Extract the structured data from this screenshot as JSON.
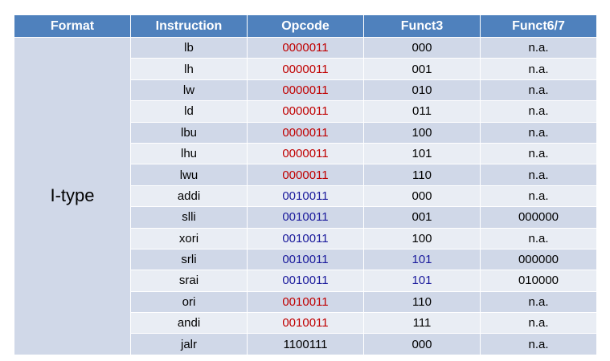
{
  "table": {
    "header": [
      "Format",
      "Instruction",
      "Opcode",
      "Funct3",
      "Funct6/7"
    ],
    "format": "I-type",
    "rows": [
      {
        "cells": [
          "lb",
          "0000011",
          "000",
          "n.a."
        ],
        "colors": [
          "#000000",
          "#c00000",
          "#000000",
          "#000000"
        ]
      },
      {
        "cells": [
          "lh",
          "0000011",
          "001",
          "n.a."
        ],
        "colors": [
          "#000000",
          "#c00000",
          "#000000",
          "#000000"
        ]
      },
      {
        "cells": [
          "lw",
          "0000011",
          "010",
          "n.a."
        ],
        "colors": [
          "#000000",
          "#c00000",
          "#000000",
          "#000000"
        ]
      },
      {
        "cells": [
          "ld",
          "0000011",
          "011",
          "n.a."
        ],
        "colors": [
          "#000000",
          "#c00000",
          "#000000",
          "#000000"
        ]
      },
      {
        "cells": [
          "lbu",
          "0000011",
          "100",
          "n.a."
        ],
        "colors": [
          "#000000",
          "#c00000",
          "#000000",
          "#000000"
        ]
      },
      {
        "cells": [
          "lhu",
          "0000011",
          "101",
          "n.a."
        ],
        "colors": [
          "#000000",
          "#c00000",
          "#000000",
          "#000000"
        ]
      },
      {
        "cells": [
          "lwu",
          "0000011",
          "110",
          "n.a."
        ],
        "colors": [
          "#000000",
          "#c00000",
          "#000000",
          "#000000"
        ]
      },
      {
        "cells": [
          "addi",
          "0010011",
          "000",
          "n.a."
        ],
        "colors": [
          "#000000",
          "#1a1a9c",
          "#000000",
          "#000000"
        ]
      },
      {
        "cells": [
          "slli",
          "0010011",
          "001",
          "000000"
        ],
        "colors": [
          "#000000",
          "#1a1a9c",
          "#000000",
          "#000000"
        ]
      },
      {
        "cells": [
          "xori",
          "0010011",
          "100",
          "n.a."
        ],
        "colors": [
          "#000000",
          "#1a1a9c",
          "#000000",
          "#000000"
        ]
      },
      {
        "cells": [
          "srli",
          "0010011",
          "101",
          "000000"
        ],
        "colors": [
          "#000000",
          "#1a1a9c",
          "#1a1a9c",
          "#000000"
        ]
      },
      {
        "cells": [
          "srai",
          "0010011",
          "101",
          "010000"
        ],
        "colors": [
          "#000000",
          "#1a1a9c",
          "#1a1a9c",
          "#000000"
        ]
      },
      {
        "cells": [
          "ori",
          "0010011",
          "110",
          "n.a."
        ],
        "colors": [
          "#000000",
          "#c00000",
          "#000000",
          "#000000"
        ]
      },
      {
        "cells": [
          "andi",
          "0010011",
          "111",
          "n.a."
        ],
        "colors": [
          "#000000",
          "#c00000",
          "#000000",
          "#000000"
        ]
      },
      {
        "cells": [
          "jalr",
          "1100111",
          "000",
          "n.a."
        ],
        "colors": [
          "#000000",
          "#000000",
          "#000000",
          "#000000"
        ]
      }
    ]
  }
}
